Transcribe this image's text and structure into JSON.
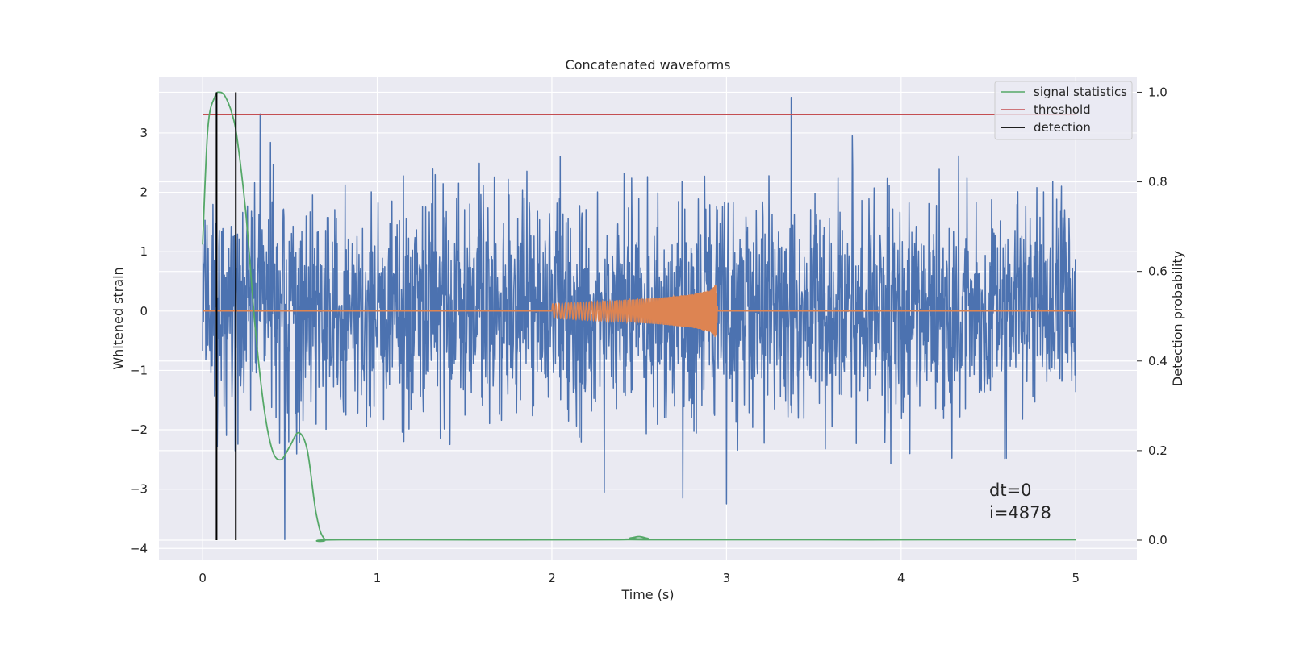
{
  "chart_data": {
    "type": "line",
    "title": "Concatenated waveforms",
    "xlabel": "Time (s)",
    "ylabel": "Whitened strain",
    "y2label": "Detection probability",
    "xlim": [
      -0.25,
      5.35
    ],
    "ylim": [
      -4.2,
      3.95
    ],
    "y2lim": [
      -0.045,
      1.035
    ],
    "xticks": [
      0,
      1,
      2,
      3,
      4,
      5
    ],
    "xtick_labels": [
      "0",
      "1",
      "2",
      "3",
      "4",
      "5"
    ],
    "yticks": [
      -4,
      -3,
      -2,
      -1,
      0,
      1,
      2,
      3
    ],
    "ytick_labels": [
      "−4",
      "−3",
      "−2",
      "−1",
      "0",
      "1",
      "2",
      "3"
    ],
    "y2ticks": [
      0.0,
      0.2,
      0.4,
      0.6,
      0.8,
      1.0
    ],
    "y2tick_labels": [
      "0.0",
      "0.2",
      "0.4",
      "0.6",
      "0.8",
      "1.0"
    ],
    "grid": true,
    "legend_position": "top-right",
    "annotations": [
      "dt=0",
      "i=4878"
    ],
    "colors": {
      "strain": "#4c72b0",
      "injection": "#dd8452",
      "signal_statistics": "#55a868",
      "threshold": "#c44e52",
      "detection": "#000000",
      "background": "#eaeaf2",
      "grid": "#ffffff"
    },
    "series": [
      {
        "name": "",
        "axis": "left",
        "kind": "noise",
        "x_range": [
          0,
          5
        ],
        "typical_range": [
          -2.4,
          2.4
        ],
        "extremes": [
          [
            0.47,
            -3.85
          ],
          [
            3.37,
            3.6
          ],
          [
            0.33,
            3.32
          ],
          [
            3.0,
            -3.25
          ],
          [
            2.75,
            -3.15
          ],
          [
            2.3,
            -3.05
          ]
        ]
      },
      {
        "name": "",
        "axis": "left",
        "kind": "chirp",
        "x": [
          0,
          2.0,
          2.2,
          2.4,
          2.6,
          2.8,
          2.9,
          2.94,
          2.95,
          5
        ],
        "amplitude": [
          0,
          0.12,
          0.15,
          0.18,
          0.22,
          0.28,
          0.35,
          0.45,
          0,
          0
        ]
      },
      {
        "name": "signal statistics",
        "axis": "right",
        "x": [
          0.0,
          0.03,
          0.07,
          0.1,
          0.13,
          0.17,
          0.2,
          0.25,
          0.3,
          0.35,
          0.4,
          0.45,
          0.5,
          0.55,
          0.6,
          0.65,
          0.7,
          0.8,
          2.35,
          2.45,
          2.5,
          2.55,
          2.6,
          5.0
        ],
        "values": [
          0.66,
          0.92,
          0.99,
          1.0,
          0.99,
          0.95,
          0.89,
          0.72,
          0.48,
          0.3,
          0.2,
          0.18,
          0.21,
          0.24,
          0.2,
          0.06,
          0.002,
          0.001,
          0.001,
          0.005,
          0.008,
          0.004,
          0.001,
          0.001
        ]
      },
      {
        "name": "threshold",
        "axis": "right",
        "x": [
          0,
          5
        ],
        "values": [
          0.95,
          0.95
        ]
      },
      {
        "name": "detection",
        "axis": "right",
        "kind": "vlines",
        "x": [
          0.08,
          0.19
        ],
        "range": [
          0,
          1
        ]
      }
    ]
  }
}
